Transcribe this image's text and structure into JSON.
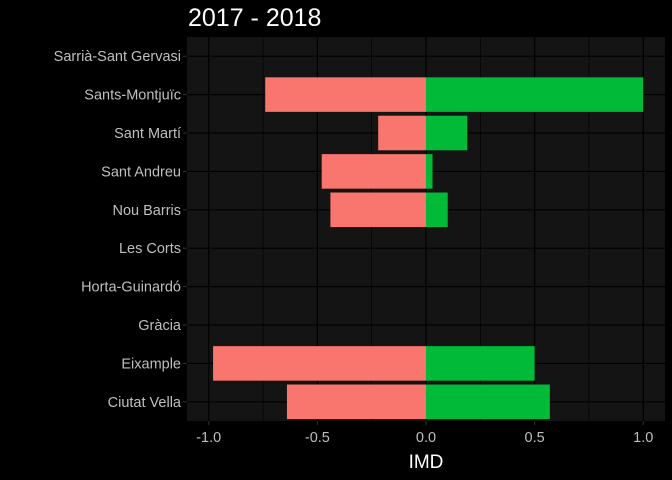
{
  "chart_data": {
    "type": "bar",
    "orientation": "horizontal",
    "title": "2017 - 2018",
    "xlabel": "IMD",
    "ylabel": "",
    "xlim": [
      -1.1,
      1.1
    ],
    "xticks": [
      -1.0,
      -0.5,
      0.0,
      0.5,
      1.0
    ],
    "xtick_labels": [
      "-1.0",
      "-0.5",
      "0.0",
      "0.5",
      "1.0"
    ],
    "grid": true,
    "legend": "none",
    "categories": [
      "Ciutat Vella",
      "Eixample",
      "Gràcia",
      "Horta-Guinardó",
      "Les Corts",
      "Nou Barris",
      "Sant Andreu",
      "Sant Martí",
      "Sants-Montjuïc",
      "Sarrià-Sant Gervasi"
    ],
    "series": [
      {
        "color": "#F8766D",
        "values": [
          -0.64,
          -0.98,
          0,
          0,
          0,
          -0.44,
          -0.48,
          -0.22,
          -0.74,
          0
        ]
      },
      {
        "color": "#00BA38",
        "values": [
          0.57,
          0.5,
          0,
          0,
          0,
          0.1,
          0.03,
          0.19,
          1.0,
          0
        ]
      }
    ],
    "colors": {
      "background": "#000000",
      "panel": "#141414",
      "grid": "#000000",
      "text": "#BFBFBF",
      "title": "#FFFFFF"
    }
  }
}
